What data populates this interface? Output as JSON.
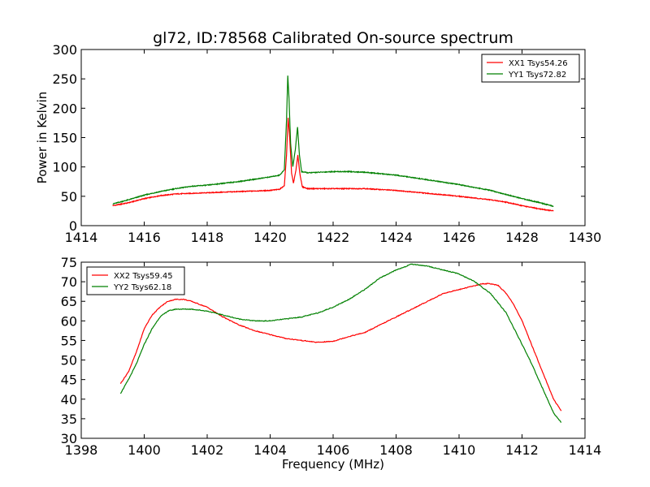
{
  "chart_data": [
    {
      "type": "line",
      "title": "gl72, ID:78568 Calibrated On-source spectrum",
      "xlabel": "",
      "ylabel": "Power in Kelvin",
      "xlim": [
        1414,
        1430
      ],
      "ylim": [
        0,
        300
      ],
      "xticks": [
        1414,
        1416,
        1418,
        1420,
        1422,
        1424,
        1426,
        1428,
        1430
      ],
      "yticks": [
        0,
        50,
        100,
        150,
        200,
        250,
        300
      ],
      "grid": false,
      "legend_position": "top-right",
      "series": [
        {
          "name": "XX1 Tsys54.26",
          "color": "#ff0000",
          "points": [
            [
              1415.0,
              34
            ],
            [
              1415.5,
              39
            ],
            [
              1416.0,
              46
            ],
            [
              1416.5,
              51
            ],
            [
              1417.0,
              54
            ],
            [
              1417.5,
              55
            ],
            [
              1418.0,
              56
            ],
            [
              1418.5,
              57
            ],
            [
              1419.0,
              58
            ],
            [
              1419.5,
              59
            ],
            [
              1420.0,
              60
            ],
            [
              1420.3,
              62
            ],
            [
              1420.45,
              68
            ],
            [
              1420.52,
              120
            ],
            [
              1420.57,
              184
            ],
            [
              1420.62,
              150
            ],
            [
              1420.68,
              90
            ],
            [
              1420.74,
              72
            ],
            [
              1420.82,
              95
            ],
            [
              1420.88,
              120
            ],
            [
              1420.94,
              90
            ],
            [
              1421.02,
              66
            ],
            [
              1421.2,
              63
            ],
            [
              1422.0,
              63
            ],
            [
              1423.0,
              63
            ],
            [
              1424.0,
              60
            ],
            [
              1425.0,
              55
            ],
            [
              1426.0,
              50
            ],
            [
              1427.0,
              44
            ],
            [
              1427.5,
              40
            ],
            [
              1428.0,
              34
            ],
            [
              1428.5,
              29
            ],
            [
              1429.0,
              25
            ]
          ]
        },
        {
          "name": "YY1 Tsys72.82",
          "color": "#008000",
          "points": [
            [
              1415.0,
              37
            ],
            [
              1415.5,
              44
            ],
            [
              1416.0,
              52
            ],
            [
              1416.5,
              58
            ],
            [
              1417.0,
              63
            ],
            [
              1417.5,
              67
            ],
            [
              1418.0,
              69
            ],
            [
              1418.5,
              72
            ],
            [
              1419.0,
              75
            ],
            [
              1419.5,
              79
            ],
            [
              1420.0,
              83
            ],
            [
              1420.3,
              86
            ],
            [
              1420.45,
              95
            ],
            [
              1420.52,
              180
            ],
            [
              1420.56,
              256
            ],
            [
              1420.6,
              215
            ],
            [
              1420.65,
              140
            ],
            [
              1420.72,
              100
            ],
            [
              1420.8,
              130
            ],
            [
              1420.87,
              168
            ],
            [
              1420.93,
              120
            ],
            [
              1421.0,
              92
            ],
            [
              1421.2,
              90
            ],
            [
              1422.0,
              92
            ],
            [
              1422.5,
              92
            ],
            [
              1423.0,
              91
            ],
            [
              1424.0,
              86
            ],
            [
              1425.0,
              78
            ],
            [
              1426.0,
              70
            ],
            [
              1427.0,
              60
            ],
            [
              1428.0,
              46
            ],
            [
              1428.5,
              40
            ],
            [
              1429.0,
              33
            ]
          ]
        }
      ]
    },
    {
      "type": "line",
      "title": "",
      "xlabel": "Frequency (MHz)",
      "ylabel": "",
      "xlim": [
        1398,
        1414
      ],
      "ylim": [
        30,
        75
      ],
      "xticks": [
        1398,
        1400,
        1402,
        1404,
        1406,
        1408,
        1410,
        1412,
        1414
      ],
      "yticks": [
        30,
        35,
        40,
        45,
        50,
        55,
        60,
        65,
        70,
        75
      ],
      "grid": false,
      "legend_position": "top-left",
      "series": [
        {
          "name": "XX2 Tsys59.45",
          "color": "#ff0000",
          "points": [
            [
              1399.25,
              44
            ],
            [
              1399.5,
              47
            ],
            [
              1399.75,
              52
            ],
            [
              1400.0,
              58
            ],
            [
              1400.25,
              61.5
            ],
            [
              1400.5,
              63.5
            ],
            [
              1400.75,
              65
            ],
            [
              1401.0,
              65.5
            ],
            [
              1401.25,
              65.5
            ],
            [
              1401.5,
              65
            ],
            [
              1402.0,
              63.5
            ],
            [
              1402.5,
              61
            ],
            [
              1403.0,
              59
            ],
            [
              1403.5,
              57.5
            ],
            [
              1404.0,
              56.5
            ],
            [
              1404.5,
              55.5
            ],
            [
              1405.0,
              55
            ],
            [
              1405.5,
              54.5
            ],
            [
              1406.0,
              54.8
            ],
            [
              1406.5,
              56
            ],
            [
              1407.0,
              57
            ],
            [
              1407.5,
              59
            ],
            [
              1408.0,
              61
            ],
            [
              1408.5,
              63
            ],
            [
              1409.0,
              65
            ],
            [
              1409.5,
              67
            ],
            [
              1410.0,
              68
            ],
            [
              1410.5,
              69
            ],
            [
              1410.75,
              69.5
            ],
            [
              1411.0,
              69.5
            ],
            [
              1411.25,
              69
            ],
            [
              1411.5,
              67
            ],
            [
              1411.75,
              64
            ],
            [
              1412.0,
              60
            ],
            [
              1412.25,
              55
            ],
            [
              1412.5,
              50
            ],
            [
              1412.75,
              45
            ],
            [
              1413.0,
              40
            ],
            [
              1413.25,
              37
            ]
          ]
        },
        {
          "name": "YY2 Tsys62.18",
          "color": "#008000",
          "points": [
            [
              1399.25,
              41.5
            ],
            [
              1399.5,
              45
            ],
            [
              1399.75,
              49
            ],
            [
              1400.0,
              54
            ],
            [
              1400.25,
              58
            ],
            [
              1400.5,
              61
            ],
            [
              1400.75,
              62.5
            ],
            [
              1401.0,
              63
            ],
            [
              1401.5,
              63
            ],
            [
              1402.0,
              62.5
            ],
            [
              1402.5,
              61.5
            ],
            [
              1403.0,
              60.5
            ],
            [
              1403.5,
              60
            ],
            [
              1404.0,
              60
            ],
            [
              1404.5,
              60.5
            ],
            [
              1405.0,
              61
            ],
            [
              1405.5,
              62
            ],
            [
              1406.0,
              63.5
            ],
            [
              1406.5,
              65.5
            ],
            [
              1407.0,
              68
            ],
            [
              1407.5,
              71
            ],
            [
              1408.0,
              73
            ],
            [
              1408.5,
              74.5
            ],
            [
              1409.0,
              74
            ],
            [
              1409.5,
              73
            ],
            [
              1410.0,
              72
            ],
            [
              1410.5,
              70
            ],
            [
              1411.0,
              67
            ],
            [
              1411.5,
              62
            ],
            [
              1411.75,
              58
            ],
            [
              1412.0,
              54
            ],
            [
              1412.25,
              50
            ],
            [
              1412.5,
              45.5
            ],
            [
              1412.75,
              41
            ],
            [
              1413.0,
              36.5
            ],
            [
              1413.25,
              34
            ]
          ]
        }
      ]
    }
  ]
}
